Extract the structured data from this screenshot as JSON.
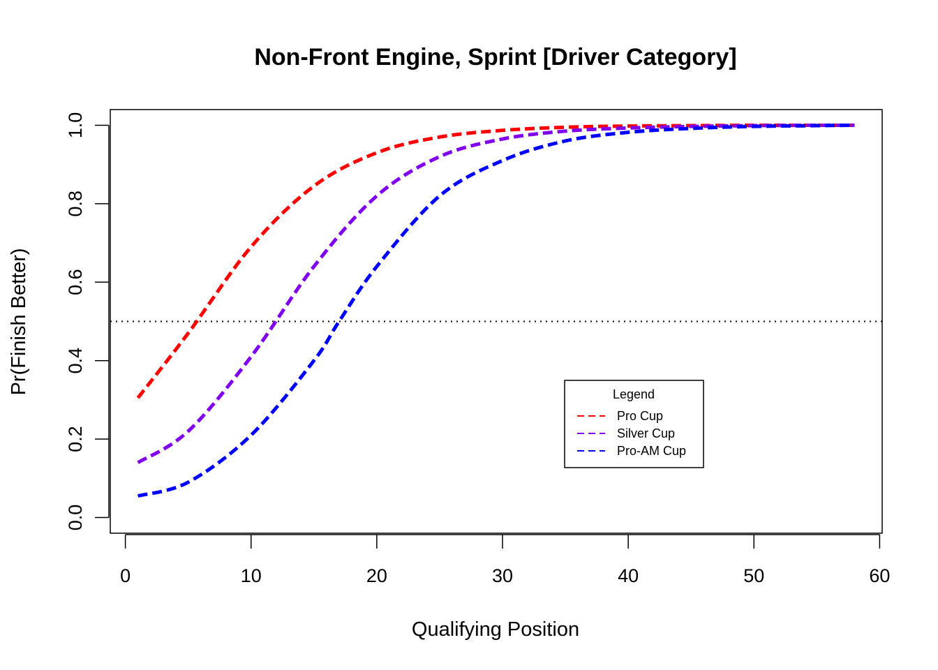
{
  "chart_data": {
    "type": "line",
    "title": "Non-Front Engine, Sprint [Driver Category]",
    "xlabel": "Qualifying Position",
    "ylabel": "Pr(Finish Better)",
    "xlim": [
      -1.2,
      60.2
    ],
    "ylim": [
      -0.04,
      1.04
    ],
    "x_ticks": [
      0,
      10,
      20,
      30,
      40,
      50,
      60
    ],
    "y_ticks": [
      0.0,
      0.2,
      0.4,
      0.6,
      0.8,
      1.0
    ],
    "x_tick_labels": [
      "0",
      "10",
      "20",
      "30",
      "40",
      "50",
      "60"
    ],
    "y_tick_labels": [
      "0.0",
      "0.2",
      "0.4",
      "0.6",
      "0.8",
      "1.0"
    ],
    "grid": false,
    "reference_line": {
      "y": 0.5,
      "style": "dotted",
      "color": "#000000"
    },
    "legend": {
      "title": "Legend",
      "placement": "bottom-right"
    },
    "series": [
      {
        "name": "Pro Cup",
        "color": "#ff0000",
        "style": "dashed",
        "x": [
          1,
          5,
          10,
          15,
          20,
          25,
          30,
          35,
          40,
          45,
          50,
          55,
          58
        ],
        "values": [
          0.305,
          0.47,
          0.69,
          0.845,
          0.93,
          0.97,
          0.987,
          0.995,
          0.998,
          0.999,
          1.0,
          1.0,
          1.0
        ]
      },
      {
        "name": "Silver Cup",
        "color": "#8000ee",
        "style": "dashed",
        "x": [
          1,
          5,
          10,
          15,
          20,
          25,
          30,
          35,
          40,
          45,
          50,
          55,
          58
        ],
        "values": [
          0.14,
          0.22,
          0.41,
          0.64,
          0.82,
          0.92,
          0.965,
          0.985,
          0.993,
          0.997,
          0.999,
          1.0,
          1.0
        ]
      },
      {
        "name": "Pro-AM Cup",
        "color": "#0000ff",
        "style": "dashed",
        "x": [
          1,
          5,
          10,
          15,
          17,
          20,
          25,
          30,
          35,
          40,
          45,
          50,
          55,
          58
        ],
        "values": [
          0.055,
          0.09,
          0.21,
          0.4,
          0.5,
          0.64,
          0.82,
          0.91,
          0.96,
          0.982,
          0.992,
          0.997,
          0.999,
          1.0
        ]
      }
    ]
  }
}
